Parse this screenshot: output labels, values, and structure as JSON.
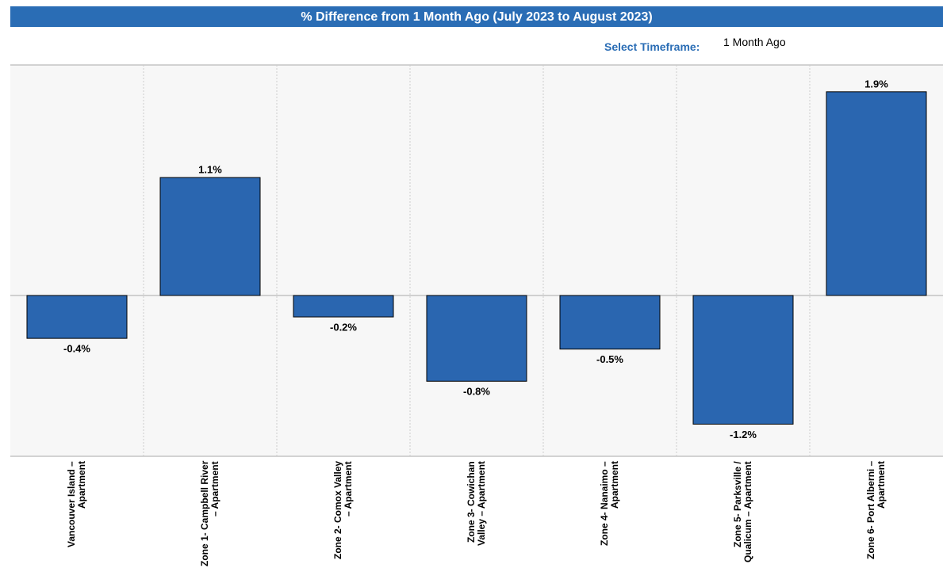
{
  "chart_data": {
    "type": "bar",
    "title": "% Difference from 1 Month Ago (July 2023 to August 2023)",
    "categories": [
      "Vancouver Island – Apartment",
      "Zone 1- Campbell River – Apartment",
      "Zone 2- Comox Valley – Apartment",
      "Zone 3- Cowichan Valley – Apartment",
      "Zone 4- Nanaimo – Apartment",
      "Zone 5- Parksville / Qualicum – Apartment",
      "Zone 6- Port Alberni – Apartment"
    ],
    "values": [
      -0.4,
      1.1,
      -0.2,
      -0.8,
      -0.5,
      -1.2,
      1.9
    ],
    "value_labels": [
      "-0.4%",
      "1.1%",
      "-0.2%",
      "-0.8%",
      "-0.5%",
      "-1.2%",
      "1.9%"
    ],
    "color": "#2a66b0",
    "ylim": [
      -1.5,
      2.15
    ]
  },
  "controls": {
    "label": "Select Timeframe:",
    "value": "1 Month Ago"
  }
}
